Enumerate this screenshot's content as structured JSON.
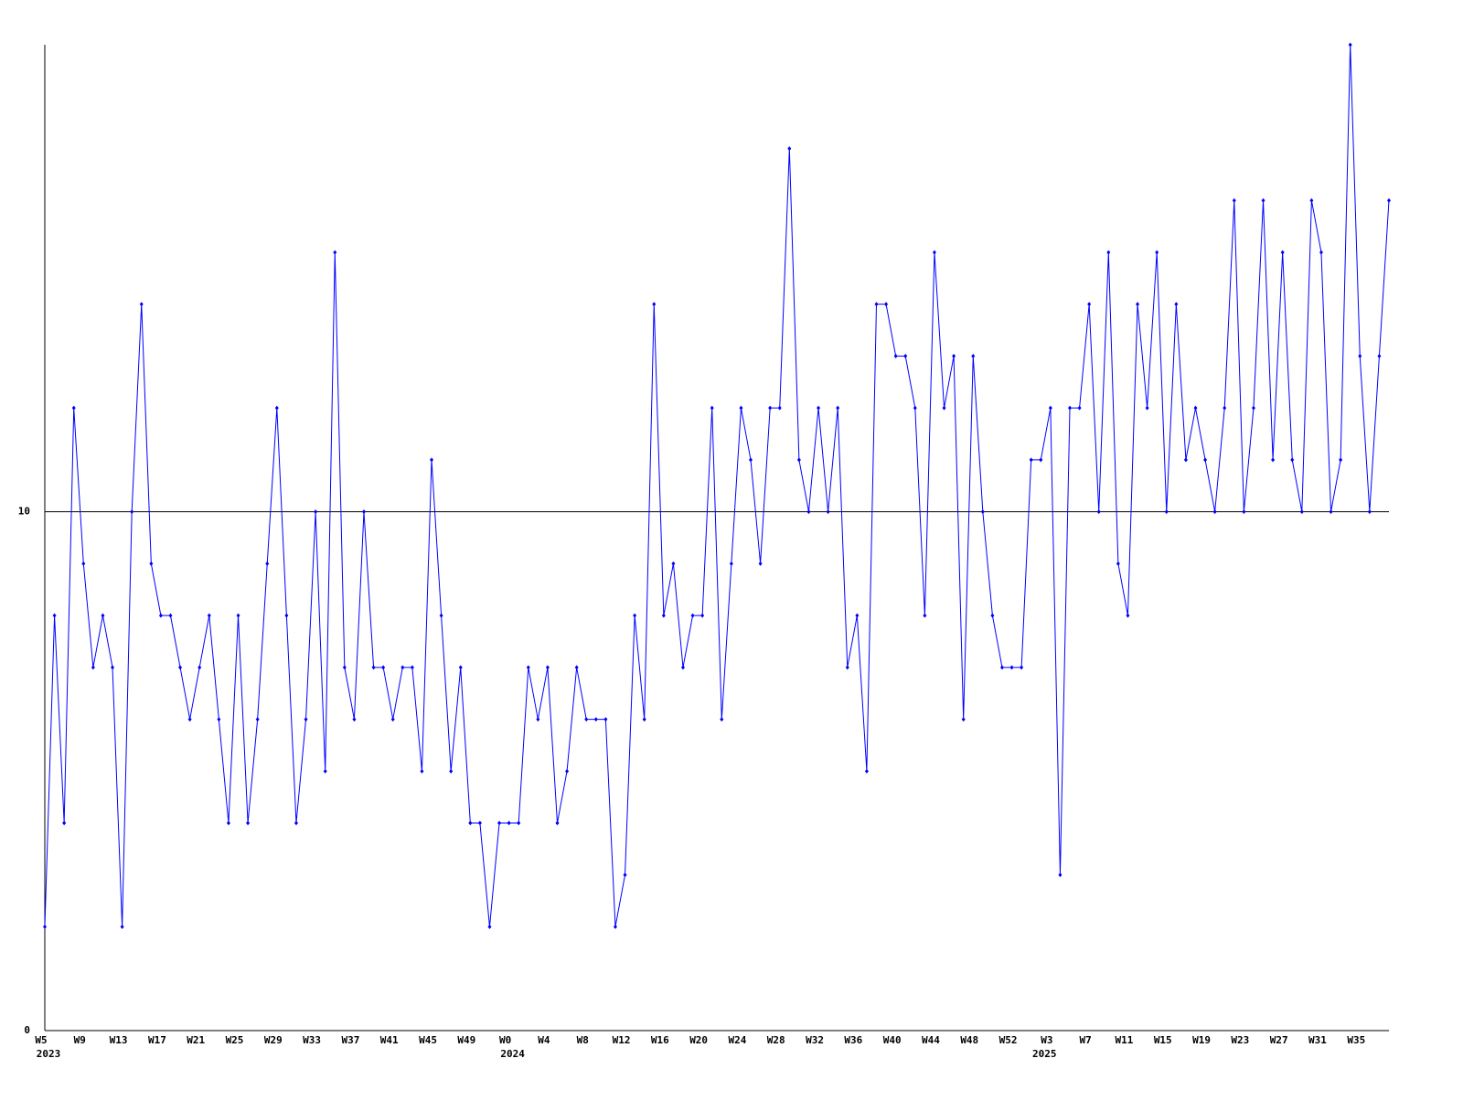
{
  "chart_data": {
    "type": "line",
    "categories": [
      "W5",
      null,
      null,
      null,
      "W9",
      null,
      null,
      null,
      "W13",
      null,
      null,
      null,
      "W17",
      null,
      null,
      null,
      "W21",
      null,
      null,
      null,
      "W25",
      null,
      null,
      null,
      "W29",
      null,
      null,
      null,
      "W33",
      null,
      null,
      null,
      "W37",
      null,
      null,
      null,
      "W41",
      null,
      null,
      null,
      "W45",
      null,
      null,
      null,
      "W49",
      null,
      null,
      null,
      "W0",
      null,
      null,
      null,
      "W4",
      null,
      null,
      null,
      "W8",
      null,
      null,
      null,
      "W12",
      null,
      null,
      null,
      "W16",
      null,
      null,
      null,
      "W20",
      null,
      null,
      null,
      "W24",
      null,
      null,
      null,
      "W28",
      null,
      null,
      null,
      "W32",
      null,
      null,
      null,
      "W36",
      null,
      null,
      null,
      "W40",
      null,
      null,
      null,
      "W44",
      null,
      null,
      null,
      "W48",
      null,
      null,
      null,
      "W52",
      null,
      null,
      null,
      "W3",
      null,
      null,
      null,
      "W7",
      null,
      null,
      null,
      "W11",
      null,
      null,
      null,
      "W15",
      null,
      null,
      null,
      "W19",
      null,
      null,
      null,
      "W23",
      null,
      null,
      null,
      "W27",
      null,
      null,
      null,
      "W31",
      null,
      null,
      null,
      "W35",
      null,
      null,
      null
    ],
    "category_years": [
      "2023",
      null,
      null,
      null,
      null,
      null,
      null,
      null,
      null,
      null,
      null,
      null,
      null,
      null,
      null,
      null,
      null,
      null,
      null,
      null,
      null,
      null,
      null,
      null,
      null,
      null,
      null,
      null,
      null,
      null,
      null,
      null,
      null,
      null,
      null,
      null,
      null,
      null,
      null,
      null,
      null,
      null,
      null,
      null,
      null,
      null,
      null,
      null,
      "2024",
      null,
      null,
      null,
      null,
      null,
      null,
      null,
      null,
      null,
      null,
      null,
      null,
      null,
      null,
      null,
      null,
      null,
      null,
      null,
      null,
      null,
      null,
      null,
      null,
      null,
      null,
      null,
      null,
      null,
      null,
      null,
      null,
      null,
      null,
      null,
      null,
      null,
      null,
      null,
      null,
      null,
      null,
      null,
      null,
      null,
      null,
      null,
      null,
      null,
      null,
      null,
      null,
      null,
      null,
      "2025",
      null,
      null,
      null,
      null,
      null,
      null,
      null,
      null,
      null,
      null,
      null,
      null,
      null,
      null,
      null,
      null,
      null,
      null,
      null,
      null,
      null,
      null,
      null,
      null,
      null,
      null,
      null,
      null,
      null,
      null,
      null,
      null,
      null,
      null,
      null,
      null,
      null,
      null
    ],
    "values": [
      2,
      8,
      4,
      12,
      9,
      7,
      8,
      7,
      2,
      10,
      14,
      9,
      8,
      8,
      7,
      6,
      7,
      8,
      6,
      4,
      8,
      4,
      6,
      9,
      12,
      8,
      4,
      6,
      10,
      5,
      15,
      7,
      6,
      10,
      7,
      7,
      6,
      7,
      7,
      5,
      11,
      8,
      5,
      7,
      4,
      4,
      2,
      4,
      4,
      4,
      7,
      6,
      7,
      4,
      5,
      7,
      6,
      6,
      6,
      2,
      3,
      8,
      6,
      14,
      8,
      9,
      7,
      8,
      8,
      12,
      6,
      9,
      12,
      11,
      9,
      12,
      12,
      17,
      11,
      10,
      12,
      10,
      12,
      7,
      8,
      5,
      14,
      14,
      13,
      13,
      12,
      8,
      15,
      12,
      13,
      6,
      13,
      10,
      8,
      7,
      7,
      7,
      11,
      11,
      12,
      3,
      12,
      12,
      14,
      10,
      15,
      9,
      8,
      14,
      12,
      15,
      10,
      14,
      11,
      12,
      11,
      10,
      12,
      16,
      10,
      12,
      16,
      11,
      15,
      11,
      10,
      16,
      15,
      10,
      11,
      19,
      13,
      10,
      13,
      16
    ],
    "color": "#0000ff",
    "ylim": [
      0,
      19
    ],
    "yticks": [
      0,
      10
    ],
    "grid": true
  }
}
